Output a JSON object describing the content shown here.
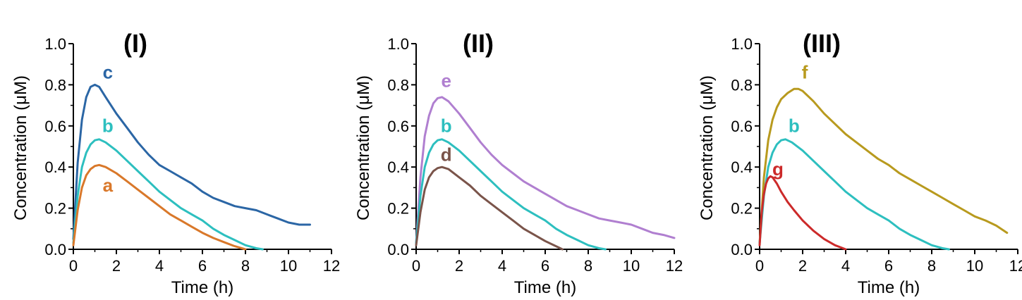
{
  "chart_data": [
    {
      "type": "line",
      "title": "(I)",
      "xlabel": "Time (h)",
      "ylabel": "Concentration (μM)",
      "xlim": [
        0,
        12
      ],
      "ylim": [
        0,
        1.0
      ],
      "x_ticks": [
        "0",
        "2",
        "4",
        "6",
        "8",
        "10",
        "12"
      ],
      "y_ticks": [
        "0.0",
        "0.2",
        "0.4",
        "0.6",
        "0.8",
        "1.0"
      ],
      "series": [
        {
          "name": "c",
          "color": "#2b66a5",
          "points": [
            [
              0,
              0.05
            ],
            [
              0.2,
              0.42
            ],
            [
              0.4,
              0.63
            ],
            [
              0.6,
              0.74
            ],
            [
              0.8,
              0.79
            ],
            [
              1.0,
              0.8
            ],
            [
              1.2,
              0.79
            ],
            [
              1.5,
              0.74
            ],
            [
              2,
              0.66
            ],
            [
              2.5,
              0.59
            ],
            [
              3,
              0.52
            ],
            [
              3.5,
              0.46
            ],
            [
              4,
              0.41
            ],
            [
              4.5,
              0.38
            ],
            [
              5,
              0.35
            ],
            [
              5.5,
              0.32
            ],
            [
              6,
              0.28
            ],
            [
              6.5,
              0.25
            ],
            [
              7,
              0.23
            ],
            [
              7.5,
              0.21
            ],
            [
              8,
              0.2
            ],
            [
              8.5,
              0.19
            ],
            [
              9,
              0.17
            ],
            [
              9.5,
              0.15
            ],
            [
              10,
              0.13
            ],
            [
              10.5,
              0.12
            ],
            [
              11,
              0.12
            ]
          ]
        },
        {
          "name": "b",
          "color": "#2dbfbf",
          "points": [
            [
              0,
              0.03
            ],
            [
              0.2,
              0.26
            ],
            [
              0.4,
              0.4
            ],
            [
              0.6,
              0.47
            ],
            [
              0.8,
              0.51
            ],
            [
              1.0,
              0.53
            ],
            [
              1.2,
              0.535
            ],
            [
              1.5,
              0.52
            ],
            [
              2,
              0.48
            ],
            [
              2.5,
              0.43
            ],
            [
              3,
              0.38
            ],
            [
              3.5,
              0.33
            ],
            [
              4,
              0.28
            ],
            [
              4.5,
              0.24
            ],
            [
              5,
              0.2
            ],
            [
              5.5,
              0.17
            ],
            [
              6,
              0.14
            ],
            [
              6.5,
              0.1
            ],
            [
              7,
              0.07
            ],
            [
              7.5,
              0.045
            ],
            [
              8,
              0.02
            ],
            [
              8.5,
              0.005
            ],
            [
              8.8,
              0.0
            ]
          ]
        },
        {
          "name": "a",
          "color": "#d9782a",
          "points": [
            [
              0,
              0.02
            ],
            [
              0.2,
              0.19
            ],
            [
              0.4,
              0.3
            ],
            [
              0.6,
              0.36
            ],
            [
              0.8,
              0.39
            ],
            [
              1.0,
              0.405
            ],
            [
              1.2,
              0.41
            ],
            [
              1.5,
              0.4
            ],
            [
              2,
              0.37
            ],
            [
              2.5,
              0.33
            ],
            [
              3,
              0.29
            ],
            [
              3.5,
              0.25
            ],
            [
              4,
              0.21
            ],
            [
              4.5,
              0.17
            ],
            [
              5,
              0.14
            ],
            [
              5.5,
              0.11
            ],
            [
              6,
              0.08
            ],
            [
              6.5,
              0.055
            ],
            [
              7,
              0.035
            ],
            [
              7.5,
              0.015
            ],
            [
              8,
              0.0
            ]
          ]
        }
      ],
      "labels": [
        {
          "text": "c",
          "series": "c",
          "at": [
            1.6,
            0.83
          ]
        },
        {
          "text": "b",
          "series": "b",
          "at": [
            1.6,
            0.57
          ]
        },
        {
          "text": "a",
          "series": "a",
          "at": [
            1.6,
            0.28
          ]
        }
      ]
    },
    {
      "type": "line",
      "title": "(II)",
      "xlabel": "Time (h)",
      "ylabel": "Concentration (μM)",
      "xlim": [
        0,
        12
      ],
      "ylim": [
        0,
        1.0
      ],
      "x_ticks": [
        "0",
        "2",
        "4",
        "6",
        "8",
        "10",
        "12"
      ],
      "y_ticks": [
        "0.0",
        "0.2",
        "0.4",
        "0.6",
        "0.8",
        "1.0"
      ],
      "series": [
        {
          "name": "e",
          "color": "#b07fd0",
          "points": [
            [
              0,
              0.03
            ],
            [
              0.2,
              0.35
            ],
            [
              0.4,
              0.55
            ],
            [
              0.6,
              0.65
            ],
            [
              0.8,
              0.71
            ],
            [
              1.0,
              0.735
            ],
            [
              1.2,
              0.74
            ],
            [
              1.5,
              0.72
            ],
            [
              2,
              0.66
            ],
            [
              2.5,
              0.59
            ],
            [
              3,
              0.52
            ],
            [
              3.5,
              0.46
            ],
            [
              4,
              0.41
            ],
            [
              4.5,
              0.37
            ],
            [
              5,
              0.33
            ],
            [
              5.5,
              0.3
            ],
            [
              6,
              0.27
            ],
            [
              6.5,
              0.24
            ],
            [
              7,
              0.21
            ],
            [
              7.5,
              0.19
            ],
            [
              8,
              0.17
            ],
            [
              8.5,
              0.15
            ],
            [
              9,
              0.14
            ],
            [
              9.5,
              0.13
            ],
            [
              10,
              0.12
            ],
            [
              10.5,
              0.1
            ],
            [
              11,
              0.08
            ],
            [
              11.5,
              0.07
            ],
            [
              12,
              0.055
            ]
          ]
        },
        {
          "name": "b",
          "color": "#2dbfbf",
          "points": [
            [
              0,
              0.03
            ],
            [
              0.2,
              0.26
            ],
            [
              0.4,
              0.4
            ],
            [
              0.6,
              0.47
            ],
            [
              0.8,
              0.51
            ],
            [
              1.0,
              0.53
            ],
            [
              1.2,
              0.535
            ],
            [
              1.5,
              0.52
            ],
            [
              2,
              0.48
            ],
            [
              2.5,
              0.43
            ],
            [
              3,
              0.38
            ],
            [
              3.5,
              0.33
            ],
            [
              4,
              0.28
            ],
            [
              4.5,
              0.24
            ],
            [
              5,
              0.2
            ],
            [
              5.5,
              0.17
            ],
            [
              6,
              0.14
            ],
            [
              6.5,
              0.1
            ],
            [
              7,
              0.07
            ],
            [
              7.5,
              0.045
            ],
            [
              8,
              0.02
            ],
            [
              8.5,
              0.005
            ],
            [
              8.8,
              0.0
            ]
          ]
        },
        {
          "name": "d",
          "color": "#7a544a",
          "points": [
            [
              0,
              0.02
            ],
            [
              0.2,
              0.18
            ],
            [
              0.4,
              0.29
            ],
            [
              0.6,
              0.35
            ],
            [
              0.8,
              0.38
            ],
            [
              1.0,
              0.395
            ],
            [
              1.2,
              0.4
            ],
            [
              1.5,
              0.39
            ],
            [
              2,
              0.35
            ],
            [
              2.5,
              0.31
            ],
            [
              3,
              0.26
            ],
            [
              3.5,
              0.22
            ],
            [
              4,
              0.18
            ],
            [
              4.5,
              0.14
            ],
            [
              5,
              0.1
            ],
            [
              5.5,
              0.07
            ],
            [
              6,
              0.04
            ],
            [
              6.5,
              0.015
            ],
            [
              6.8,
              0.0
            ]
          ]
        }
      ],
      "labels": [
        {
          "text": "e",
          "series": "e",
          "at": [
            1.4,
            0.79
          ]
        },
        {
          "text": "b",
          "series": "b",
          "at": [
            1.4,
            0.57
          ]
        },
        {
          "text": "d",
          "series": "d",
          "at": [
            1.4,
            0.43
          ]
        }
      ]
    },
    {
      "type": "line",
      "title": "(III)",
      "xlabel": "Time (h)",
      "ylabel": "Concentration (μM)",
      "xlim": [
        0,
        12
      ],
      "ylim": [
        0,
        1.0
      ],
      "x_ticks": [
        "0",
        "2",
        "4",
        "6",
        "8",
        "10",
        "12"
      ],
      "y_ticks": [
        "0.0",
        "0.2",
        "0.4",
        "0.6",
        "0.8",
        "1.0"
      ],
      "series": [
        {
          "name": "f",
          "color": "#b89a1e",
          "points": [
            [
              0,
              0.03
            ],
            [
              0.2,
              0.35
            ],
            [
              0.4,
              0.53
            ],
            [
              0.6,
              0.63
            ],
            [
              0.8,
              0.69
            ],
            [
              1.0,
              0.73
            ],
            [
              1.3,
              0.76
            ],
            [
              1.6,
              0.78
            ],
            [
              1.8,
              0.78
            ],
            [
              2,
              0.77
            ],
            [
              2.5,
              0.72
            ],
            [
              3,
              0.66
            ],
            [
              3.5,
              0.61
            ],
            [
              4,
              0.56
            ],
            [
              4.5,
              0.52
            ],
            [
              5,
              0.48
            ],
            [
              5.5,
              0.44
            ],
            [
              6,
              0.41
            ],
            [
              6.5,
              0.37
            ],
            [
              7,
              0.34
            ],
            [
              7.5,
              0.31
            ],
            [
              8,
              0.28
            ],
            [
              8.5,
              0.25
            ],
            [
              9,
              0.22
            ],
            [
              9.5,
              0.19
            ],
            [
              10,
              0.16
            ],
            [
              10.5,
              0.14
            ],
            [
              11,
              0.115
            ],
            [
              11.5,
              0.08
            ]
          ]
        },
        {
          "name": "b",
          "color": "#2dbfbf",
          "points": [
            [
              0,
              0.03
            ],
            [
              0.2,
              0.26
            ],
            [
              0.4,
              0.4
            ],
            [
              0.6,
              0.47
            ],
            [
              0.8,
              0.51
            ],
            [
              1.0,
              0.53
            ],
            [
              1.2,
              0.535
            ],
            [
              1.5,
              0.52
            ],
            [
              2,
              0.48
            ],
            [
              2.5,
              0.43
            ],
            [
              3,
              0.38
            ],
            [
              3.5,
              0.33
            ],
            [
              4,
              0.28
            ],
            [
              4.5,
              0.24
            ],
            [
              5,
              0.2
            ],
            [
              5.5,
              0.17
            ],
            [
              6,
              0.14
            ],
            [
              6.5,
              0.1
            ],
            [
              7,
              0.07
            ],
            [
              7.5,
              0.045
            ],
            [
              8,
              0.02
            ],
            [
              8.5,
              0.005
            ],
            [
              8.8,
              0.0
            ]
          ]
        },
        {
          "name": "g",
          "color": "#cc2a2a",
          "points": [
            [
              0,
              0.02
            ],
            [
              0.1,
              0.18
            ],
            [
              0.2,
              0.27
            ],
            [
              0.3,
              0.32
            ],
            [
              0.4,
              0.345
            ],
            [
              0.5,
              0.355
            ],
            [
              0.6,
              0.35
            ],
            [
              0.8,
              0.32
            ],
            [
              1,
              0.28
            ],
            [
              1.3,
              0.23
            ],
            [
              1.6,
              0.19
            ],
            [
              2,
              0.14
            ],
            [
              2.5,
              0.09
            ],
            [
              3,
              0.05
            ],
            [
              3.5,
              0.02
            ],
            [
              4,
              0.0
            ]
          ]
        }
      ],
      "labels": [
        {
          "text": "f",
          "series": "f",
          "at": [
            2.1,
            0.83
          ]
        },
        {
          "text": "b",
          "series": "b",
          "at": [
            1.6,
            0.57
          ]
        },
        {
          "text": "g",
          "series": "g",
          "at": [
            0.85,
            0.36
          ]
        }
      ]
    }
  ]
}
